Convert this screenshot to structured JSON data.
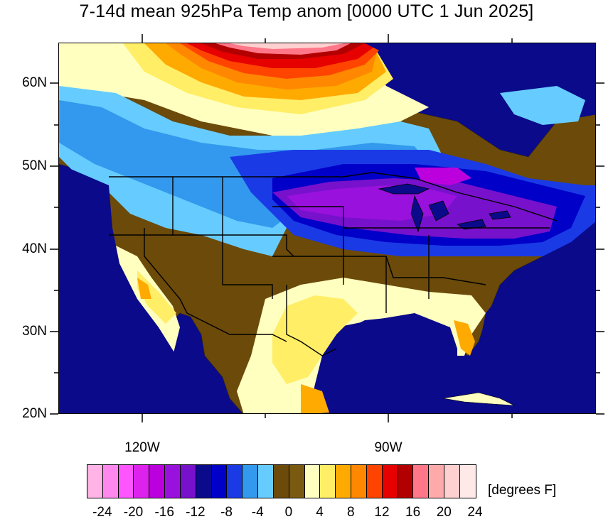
{
  "title": "7-14d mean 925hPa Temp anom [0000 UTC 1 Jun 2025]",
  "lat_labels": [
    "60N",
    "50N",
    "40N",
    "30N",
    "20N"
  ],
  "lon_labels": [
    "120W",
    "90W"
  ],
  "colorbar": {
    "colors": [
      "#ffb3e6",
      "#ff88ee",
      "#ff55ff",
      "#dd22ee",
      "#bb00dd",
      "#9911dd",
      "#7711cc",
      "#0a0a8a",
      "#0000c8",
      "#1a3ae6",
      "#3399ee",
      "#66ccff",
      "#6b4a0a",
      "#7a5a10",
      "#ffffc0",
      "#ffee66",
      "#ffaa00",
      "#ff8800",
      "#ff4400",
      "#e60000",
      "#b20000",
      "#ff7788",
      "#ffaaaa",
      "#ffd0d0",
      "#ffe8e8"
    ],
    "labels": [
      "-24",
      "-20",
      "-16",
      "-12",
      "-8",
      "-4",
      "0",
      "4",
      "8",
      "12",
      "16",
      "20",
      "24"
    ],
    "units": "[degrees F]"
  }
}
